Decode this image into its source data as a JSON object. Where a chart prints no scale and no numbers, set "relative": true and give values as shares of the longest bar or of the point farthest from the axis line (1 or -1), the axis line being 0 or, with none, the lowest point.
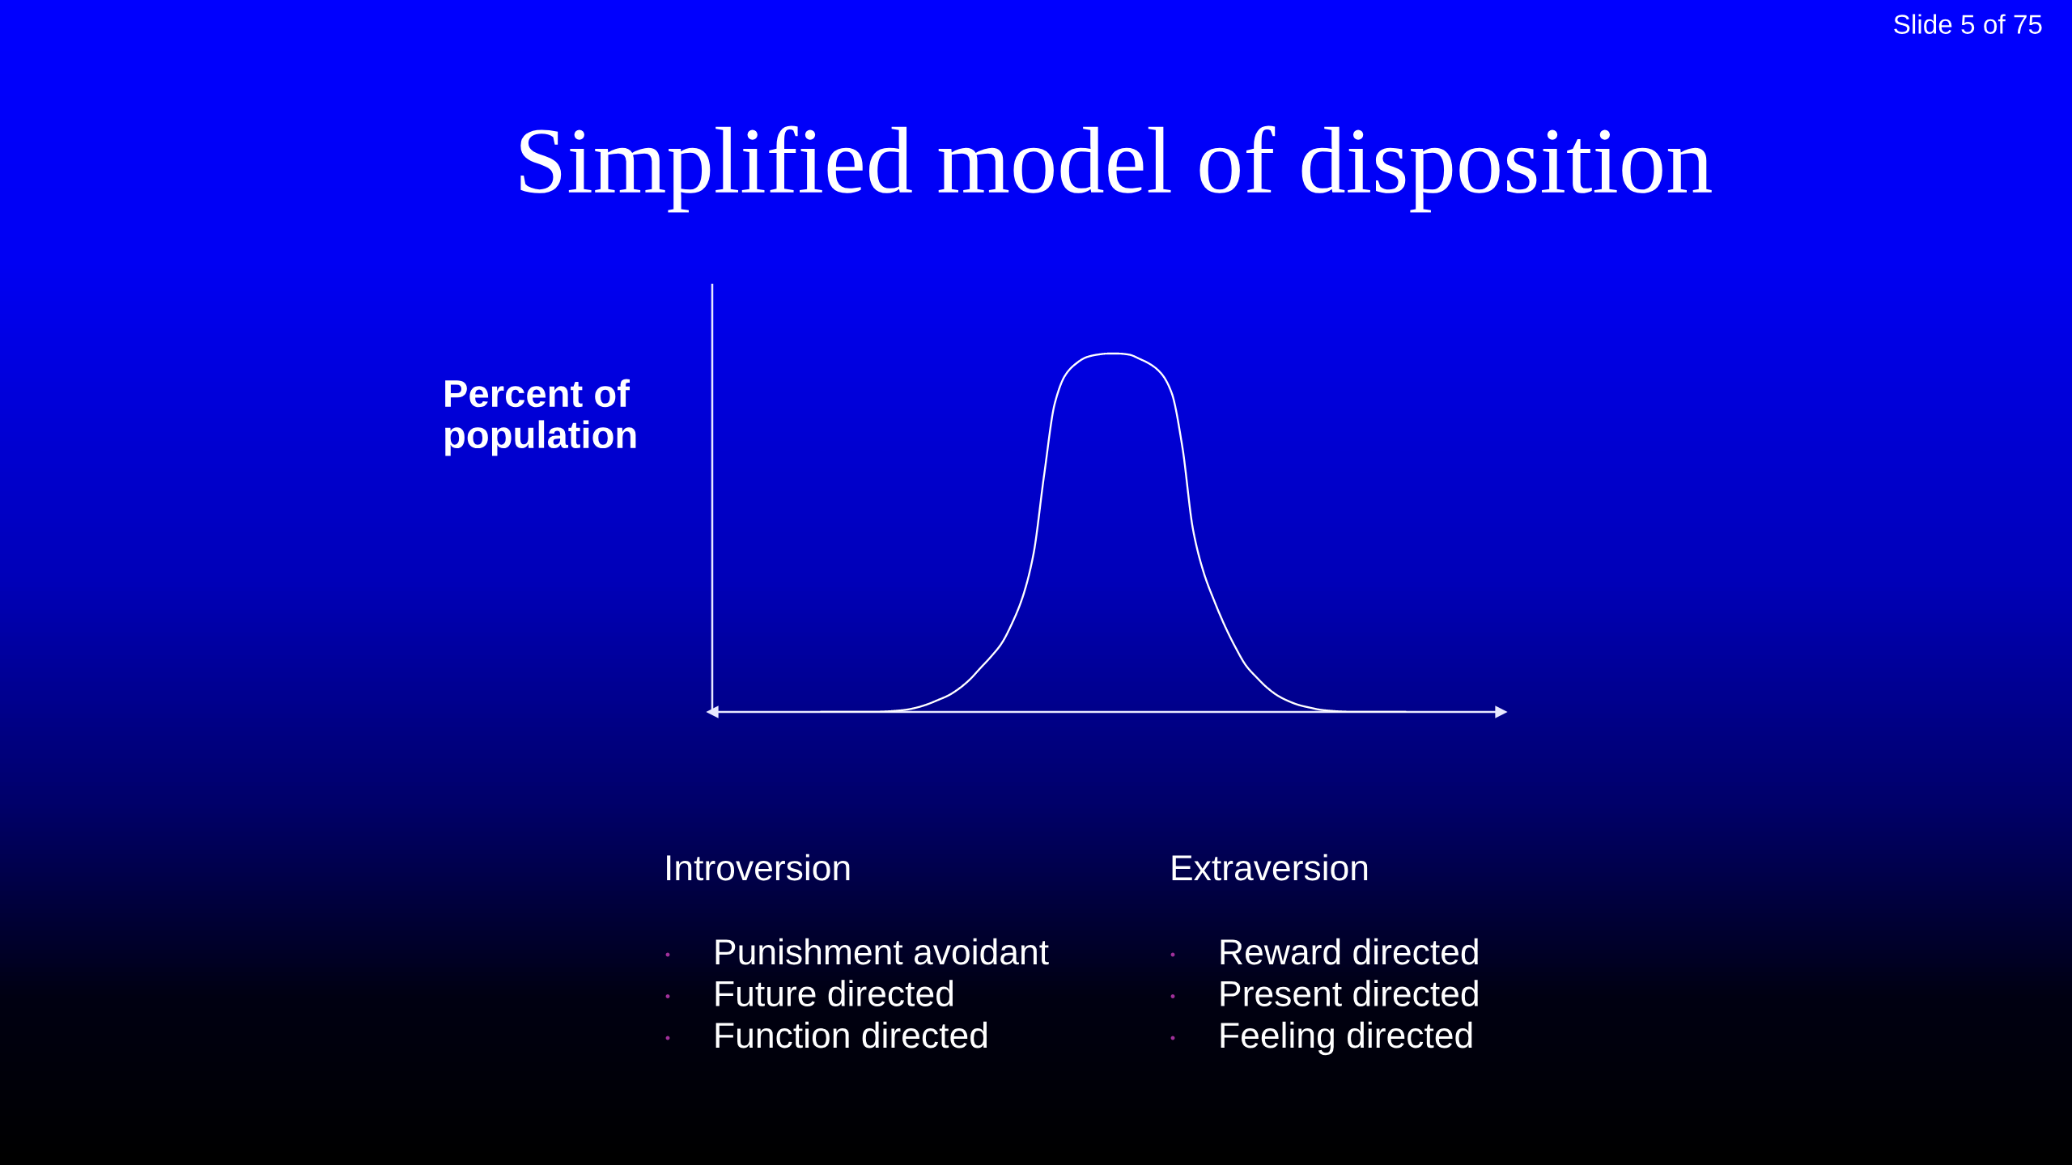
{
  "chart_data": {
    "type": "line",
    "title": "Simplified model of disposition",
    "ylabel": "Percent of\npopulation",
    "relative": true,
    "color": "#ffffff",
    "categories": [
      null,
      null,
      null,
      null,
      null,
      null,
      null,
      null,
      null,
      null,
      null,
      null,
      null,
      null,
      null,
      null,
      null,
      null,
      null,
      null,
      null,
      null,
      null,
      null,
      null,
      null,
      null,
      null,
      null,
      null,
      null,
      null,
      null,
      null,
      null,
      null,
      null,
      null,
      null,
      null,
      null,
      null,
      null,
      null,
      null,
      null,
      null,
      null,
      null,
      null,
      null,
      null,
      null,
      null,
      null,
      null
    ],
    "values": [
      0,
      0,
      0,
      0,
      0,
      0,
      0.001,
      0.003,
      0.006,
      0.012,
      0.021,
      0.033,
      0.046,
      0.065,
      0.09,
      0.122,
      0.154,
      0.191,
      0.248,
      0.322,
      0.44,
      0.66,
      0.86,
      0.94,
      0.972,
      0.99,
      0.997,
      1,
      1,
      0.997,
      0.985,
      0.97,
      0.945,
      0.89,
      0.74,
      0.51,
      0.39,
      0.31,
      0.24,
      0.18,
      0.129,
      0.096,
      0.067,
      0.045,
      0.03,
      0.019,
      0.012,
      0.006,
      0.003,
      0.001,
      0,
      0,
      0,
      0,
      0,
      0
    ],
    "annotations": [
      "Slide 5 of 75",
      "Introversion",
      "Punishment avoidant",
      "Future directed",
      "Function directed",
      "Extraversion",
      "Reward directed",
      "Present directed",
      "Feeling directed"
    ]
  }
}
